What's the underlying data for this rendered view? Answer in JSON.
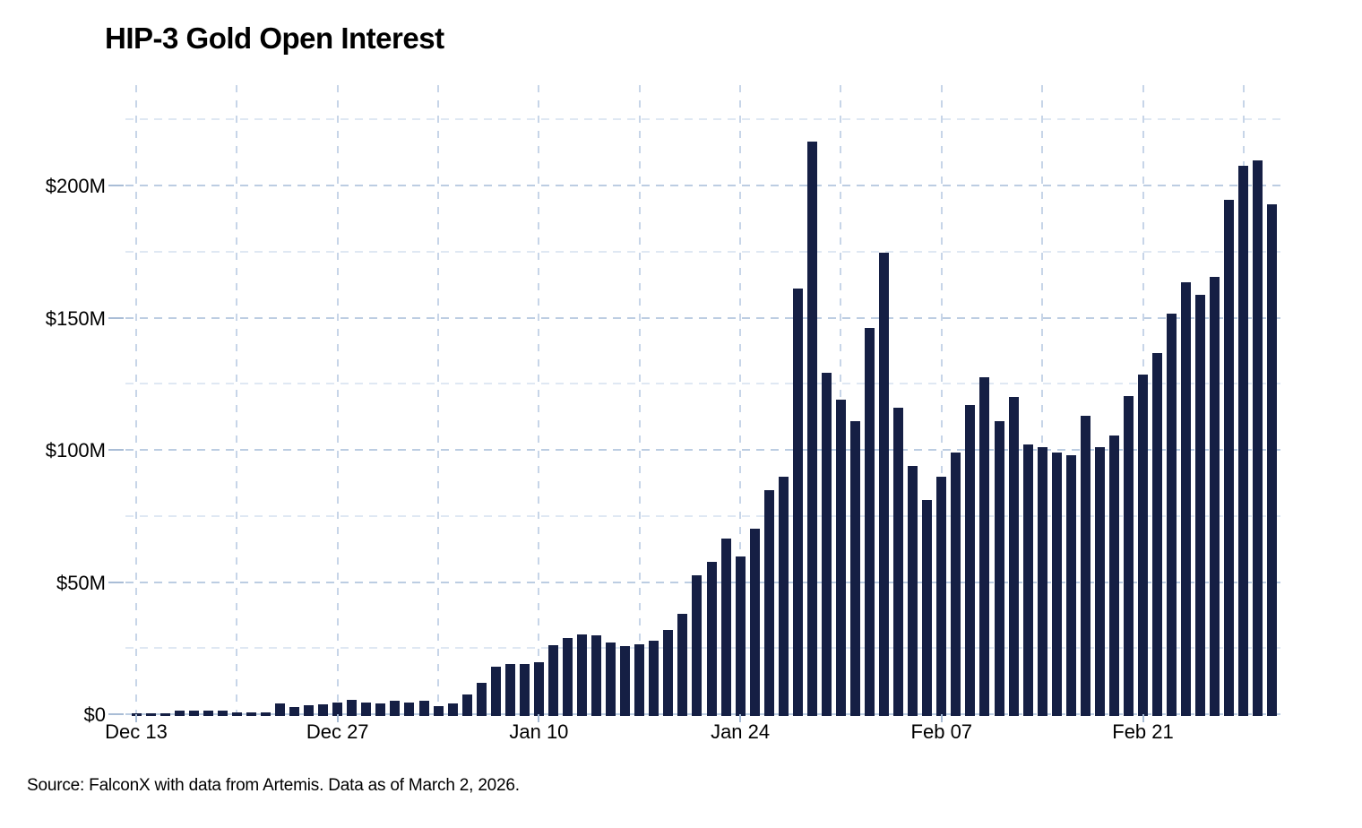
{
  "chart_data": {
    "type": "bar",
    "title": "HIP-3 Gold Open Interest",
    "source_note": "Source: FalconX with data from Artemis. Data as of March 2, 2026.",
    "xlabel": "",
    "ylabel": "",
    "unit": "USD millions",
    "ylim": [
      0,
      237
    ],
    "grid": "dashed, horizontal every 25M (labels every 50M), vertical every 7 days",
    "legend_position": "none",
    "bar_color": "#151f44",
    "background_color": "#ffffff",
    "grid_major_color": "#bccde2",
    "grid_minor_color": "#dfe8f3",
    "grid_vertical_color": "#c7d5e8",
    "axis_tick_color": "#a9bdd6",
    "y_major_ticks": [
      {
        "value": 0,
        "label": "$0"
      },
      {
        "value": 50,
        "label": "$50M"
      },
      {
        "value": 100,
        "label": "$100M"
      },
      {
        "value": 150,
        "label": "$150M"
      },
      {
        "value": 200,
        "label": "$200M"
      }
    ],
    "y_minor_tick_values": [
      25,
      75,
      125,
      175,
      225
    ],
    "x_tick_labels": [
      {
        "index": 0,
        "label": "Dec 13"
      },
      {
        "index": 14,
        "label": "Dec 27"
      },
      {
        "index": 28,
        "label": "Jan 10"
      },
      {
        "index": 42,
        "label": "Jan 24"
      },
      {
        "index": 56,
        "label": "Feb 07"
      },
      {
        "index": 70,
        "label": "Feb 21"
      }
    ],
    "x_minor_tick_indices": [
      7,
      21,
      35,
      49,
      63,
      77
    ],
    "categories": [
      "Dec 13",
      "Dec 14",
      "Dec 15",
      "Dec 16",
      "Dec 17",
      "Dec 18",
      "Dec 19",
      "Dec 20",
      "Dec 21",
      "Dec 22",
      "Dec 23",
      "Dec 24",
      "Dec 25",
      "Dec 26",
      "Dec 27",
      "Dec 28",
      "Dec 29",
      "Dec 30",
      "Dec 31",
      "Jan 01",
      "Jan 02",
      "Jan 03",
      "Jan 04",
      "Jan 05",
      "Jan 06",
      "Jan 07",
      "Jan 08",
      "Jan 09",
      "Jan 10",
      "Jan 11",
      "Jan 12",
      "Jan 13",
      "Jan 14",
      "Jan 15",
      "Jan 16",
      "Jan 17",
      "Jan 18",
      "Jan 19",
      "Jan 20",
      "Jan 21",
      "Jan 22",
      "Jan 23",
      "Jan 24",
      "Jan 25",
      "Jan 26",
      "Jan 27",
      "Jan 28",
      "Jan 29",
      "Jan 30",
      "Jan 31",
      "Feb 01",
      "Feb 02",
      "Feb 03",
      "Feb 04",
      "Feb 05",
      "Feb 06",
      "Feb 07",
      "Feb 08",
      "Feb 09",
      "Feb 10",
      "Feb 11",
      "Feb 12",
      "Feb 13",
      "Feb 14",
      "Feb 15",
      "Feb 16",
      "Feb 17",
      "Feb 18",
      "Feb 19",
      "Feb 20",
      "Feb 21",
      "Feb 22",
      "Feb 23",
      "Feb 24",
      "Feb 25",
      "Feb 26",
      "Feb 27",
      "Feb 28",
      "Mar 01",
      "Mar 02"
    ],
    "values": [
      0.4,
      0.5,
      0.5,
      1.4,
      1.4,
      1.4,
      1.2,
      0.8,
      0.8,
      0.8,
      4.0,
      2.8,
      3.4,
      3.6,
      4.5,
      5.5,
      4.5,
      4.1,
      5.2,
      4.4,
      5.2,
      3.2,
      4.1,
      7.5,
      11.7,
      18.0,
      18.9,
      19.1,
      19.8,
      26.0,
      28.8,
      30.2,
      30.0,
      27.0,
      25.9,
      26.6,
      27.7,
      31.7,
      37.9,
      52.6,
      57.7,
      66.5,
      59.8,
      70.2,
      84.7,
      90.0,
      161.0,
      216.5,
      129.0,
      119.0,
      111.0,
      146.0,
      174.5,
      116.0,
      94.0,
      81.0,
      90.0,
      99.0,
      117.0,
      127.5,
      111.0,
      120.0,
      102.0,
      101.0,
      99.0,
      98.0,
      113.0,
      101.0,
      105.5,
      120.5,
      128.5,
      136.5,
      151.5,
      163.5,
      158.5,
      165.5,
      194.5,
      207.5,
      209.5,
      193.0
    ]
  }
}
